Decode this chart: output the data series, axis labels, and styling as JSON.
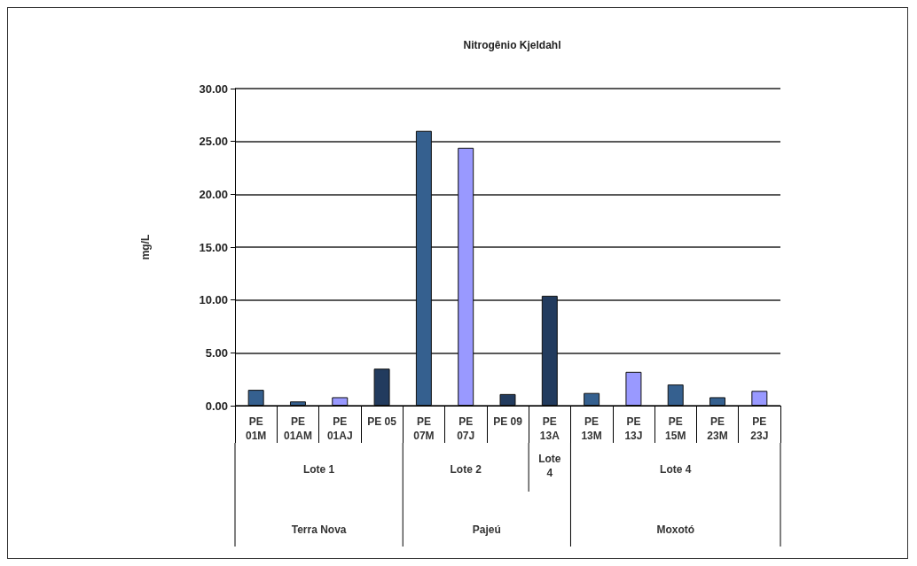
{
  "chart_data": {
    "type": "bar",
    "title": "Nitrogênio Kjeldahl",
    "ylabel": "mg/L",
    "categories": [
      "PE 01M",
      "PE 01AM",
      "PE 01AJ",
      "PE 05",
      "PE 07M",
      "PE 07J",
      "PE 09",
      "PE 13A",
      "PE 13M",
      "PE 13J",
      "PE 15M",
      "PE 23M",
      "PE 23J"
    ],
    "values": [
      1.5,
      0.4,
      0.8,
      3.5,
      26.0,
      24.4,
      1.1,
      10.4,
      1.2,
      3.2,
      2.0,
      0.8,
      1.4
    ],
    "colors": [
      "#35608f",
      "#35608f",
      "#9999ff",
      "#223b5e",
      "#35608f",
      "#9999ff",
      "#223b5e",
      "#223b5e",
      "#35608f",
      "#9999ff",
      "#35608f",
      "#35608f",
      "#9999ff"
    ],
    "ylim": [
      0,
      30
    ],
    "yticks": [
      {
        "value": 0,
        "label": "0.00"
      },
      {
        "value": 5,
        "label": "5.00"
      },
      {
        "value": 10,
        "label": "10.00"
      },
      {
        "value": 15,
        "label": "15.00"
      },
      {
        "value": 20,
        "label": "20.00"
      },
      {
        "value": 25,
        "label": "25.00"
      },
      {
        "value": 30,
        "label": "30.00"
      }
    ],
    "grid": "y",
    "annotations": [
      "Lote 1",
      "Lote 2",
      "Lote 4",
      "Lote 4",
      "Terra Nova",
      "Pajeú",
      "Moxotó"
    ]
  }
}
